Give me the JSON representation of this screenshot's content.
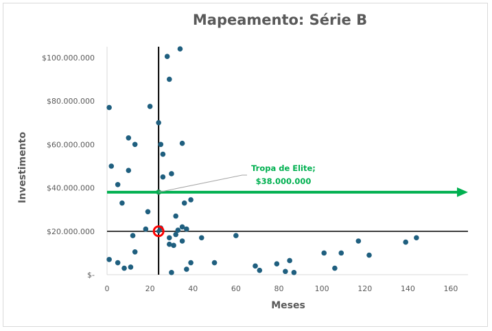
{
  "chart_data": {
    "type": "scatter",
    "title": "Mapeamento: Série B",
    "xlabel": "Meses",
    "ylabel": "Investimento",
    "xlim": [
      0,
      168
    ],
    "ylim": [
      0,
      105000000
    ],
    "x_ticks": [
      0,
      20,
      40,
      60,
      80,
      100,
      120,
      140,
      160
    ],
    "x_tick_labels": [
      "0",
      "20",
      "40",
      "60",
      "80",
      "100",
      "120",
      "140",
      "160"
    ],
    "y_ticks": [
      0,
      20000000,
      40000000,
      60000000,
      80000000,
      100000000
    ],
    "y_tick_labels": [
      "$-",
      "$20.000.000",
      "$40.000.000",
      "$60.000.000",
      "$80.000.000",
      "$100.000.000"
    ],
    "grid": false,
    "marker_color": "#1f5f7f",
    "points": [
      [
        1,
        77000000
      ],
      [
        2,
        50000000
      ],
      [
        1,
        7000000
      ],
      [
        5,
        41500000
      ],
      [
        5,
        5500000
      ],
      [
        7,
        33000000
      ],
      [
        8,
        3000000
      ],
      [
        10,
        63000000
      ],
      [
        10,
        48000000
      ],
      [
        11,
        3500000
      ],
      [
        12,
        18000000
      ],
      [
        13,
        60000000
      ],
      [
        13,
        10500000
      ],
      [
        18,
        21000000
      ],
      [
        19,
        29000000
      ],
      [
        20,
        77500000
      ],
      [
        24,
        70000000
      ],
      [
        25,
        60000000
      ],
      [
        25,
        21500000
      ],
      [
        26,
        55500000
      ],
      [
        26,
        45000000
      ],
      [
        28,
        100500000
      ],
      [
        29,
        90000000
      ],
      [
        29,
        17000000
      ],
      [
        29,
        14000000
      ],
      [
        30,
        46500000
      ],
      [
        30,
        1000000
      ],
      [
        31,
        13500000
      ],
      [
        32,
        27000000
      ],
      [
        32,
        18500000
      ],
      [
        33,
        20500000
      ],
      [
        34,
        104000000
      ],
      [
        35,
        60500000
      ],
      [
        35,
        22000000
      ],
      [
        35,
        15500000
      ],
      [
        36,
        33000000
      ],
      [
        37,
        21000000
      ],
      [
        37,
        2500000
      ],
      [
        39,
        34500000
      ],
      [
        39,
        5500000
      ],
      [
        44,
        17000000
      ],
      [
        50,
        5500000
      ],
      [
        60,
        18000000
      ],
      [
        69,
        4000000
      ],
      [
        71,
        2000000
      ],
      [
        79,
        5000000
      ],
      [
        83,
        1500000
      ],
      [
        85,
        6500000
      ],
      [
        87,
        1000000
      ],
      [
        101,
        10000000
      ],
      [
        106,
        3000000
      ],
      [
        109,
        10000000
      ],
      [
        117,
        15500000
      ],
      [
        122,
        9000000
      ],
      [
        139,
        15000000
      ],
      [
        144,
        17000000
      ]
    ],
    "reference_lines": [
      {
        "axis": "x",
        "value": 24,
        "color": "#000000"
      },
      {
        "axis": "y",
        "value": 20000000,
        "color": "#000000"
      }
    ],
    "highlight_point": {
      "x": 24,
      "y": 20000000,
      "color": "#ff0000"
    },
    "threshold_arrow": {
      "value": 38000000,
      "color": "#00b050"
    },
    "annotation": {
      "line1": "Tropa de Elite;",
      "line2": "$38.000.000",
      "point": [
        24,
        38000000
      ],
      "color": "#00b050"
    }
  }
}
